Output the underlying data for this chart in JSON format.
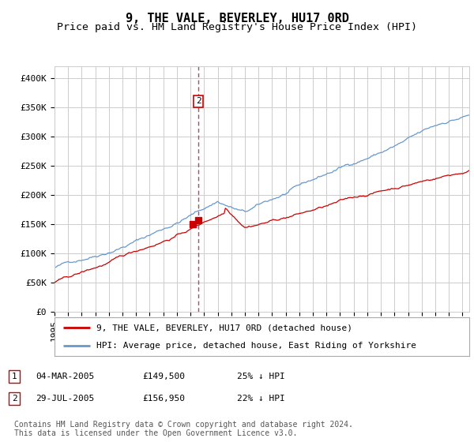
{
  "title": "9, THE VALE, BEVERLEY, HU17 0RD",
  "subtitle": "Price paid vs. HM Land Registry's House Price Index (HPI)",
  "yticks": [
    0,
    50000,
    100000,
    150000,
    200000,
    250000,
    300000,
    350000,
    400000
  ],
  "ylim": [
    0,
    420000
  ],
  "xlim_start": 1995.0,
  "xlim_end": 2025.5,
  "background_color": "#ffffff",
  "grid_color": "#cccccc",
  "hpi_color": "#6699cc",
  "property_color": "#cc0000",
  "sale1_date_x": 2005.17,
  "sale1_price": 149500,
  "sale2_date_x": 2005.58,
  "sale2_price": 156950,
  "annotation2_label": "2",
  "vline_x": 2005.58,
  "legend_label_property": "9, THE VALE, BEVERLEY, HU17 0RD (detached house)",
  "legend_label_hpi": "HPI: Average price, detached house, East Riding of Yorkshire",
  "table_rows": [
    {
      "num": "1",
      "date": "04-MAR-2005",
      "price": "£149,500",
      "pct": "25% ↓ HPI"
    },
    {
      "num": "2",
      "date": "29-JUL-2005",
      "price": "£156,950",
      "pct": "22% ↓ HPI"
    }
  ],
  "footer": "Contains HM Land Registry data © Crown copyright and database right 2024.\nThis data is licensed under the Open Government Licence v3.0.",
  "title_fontsize": 11,
  "subtitle_fontsize": 9.5,
  "tick_fontsize": 8,
  "legend_fontsize": 8,
  "table_fontsize": 8,
  "footer_fontsize": 7
}
